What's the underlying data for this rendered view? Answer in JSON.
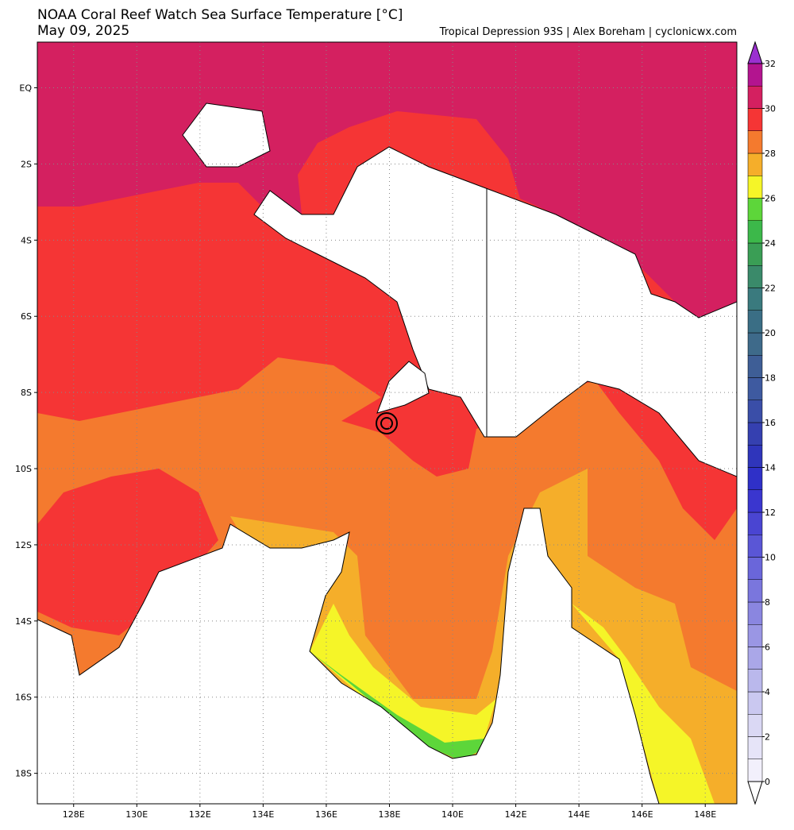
{
  "header": {
    "title": "NOAA Coral Reef Watch Sea Surface Temperature [°C]",
    "date": "May 09, 2025",
    "credit": "Tropical Depression 93S | Alex Boreham | cyclonicwx.com"
  },
  "map": {
    "lonlim": [
      126.85,
      149.0
    ],
    "latlim": [
      1.2,
      -18.8
    ],
    "lon_ticks": [
      {
        "value": 128,
        "label": "128E"
      },
      {
        "value": 130,
        "label": "130E"
      },
      {
        "value": 132,
        "label": "132E"
      },
      {
        "value": 134,
        "label": "134E"
      },
      {
        "value": 136,
        "label": "136E"
      },
      {
        "value": 138,
        "label": "138E"
      },
      {
        "value": 140,
        "label": "140E"
      },
      {
        "value": 142,
        "label": "142E"
      },
      {
        "value": 144,
        "label": "144E"
      },
      {
        "value": 146,
        "label": "146E"
      },
      {
        "value": 148,
        "label": "148E"
      }
    ],
    "lat_ticks": [
      {
        "value": 0,
        "label": "EQ"
      },
      {
        "value": -2,
        "label": "2S"
      },
      {
        "value": -4,
        "label": "4S"
      },
      {
        "value": -6,
        "label": "6S"
      },
      {
        "value": -8,
        "label": "8S"
      },
      {
        "value": -10,
        "label": "10S"
      },
      {
        "value": -12,
        "label": "12S"
      },
      {
        "value": -14,
        "label": "14S"
      },
      {
        "value": -16,
        "label": "16S"
      },
      {
        "value": -18,
        "label": "18S"
      }
    ]
  },
  "colorbar": {
    "ticks": [
      0,
      2,
      4,
      6,
      8,
      10,
      12,
      14,
      16,
      18,
      20,
      22,
      24,
      26,
      28,
      30,
      32
    ],
    "colors": [
      "#f2f0fc",
      "#e6e4f8",
      "#dad8f4",
      "#cac8f0",
      "#bab8ec",
      "#aaa7e8",
      "#9a96e4",
      "#8a86e0",
      "#7a76dd",
      "#6a66da",
      "#5a56d6",
      "#4a45d2",
      "#3a36cf",
      "#2f30c8",
      "#2f35bb",
      "#3540b0",
      "#3a4ea8",
      "#3e5aa0",
      "#3e5e96",
      "#3e6a8a",
      "#3a6e85",
      "#3a7a7e",
      "#3a8a6a",
      "#3a9e55",
      "#3cb84a",
      "#5dd63a",
      "#f5f528",
      "#f5ae2a",
      "#f47a2e",
      "#f53535",
      "#d42060",
      "#b3148f"
    ]
  }
}
